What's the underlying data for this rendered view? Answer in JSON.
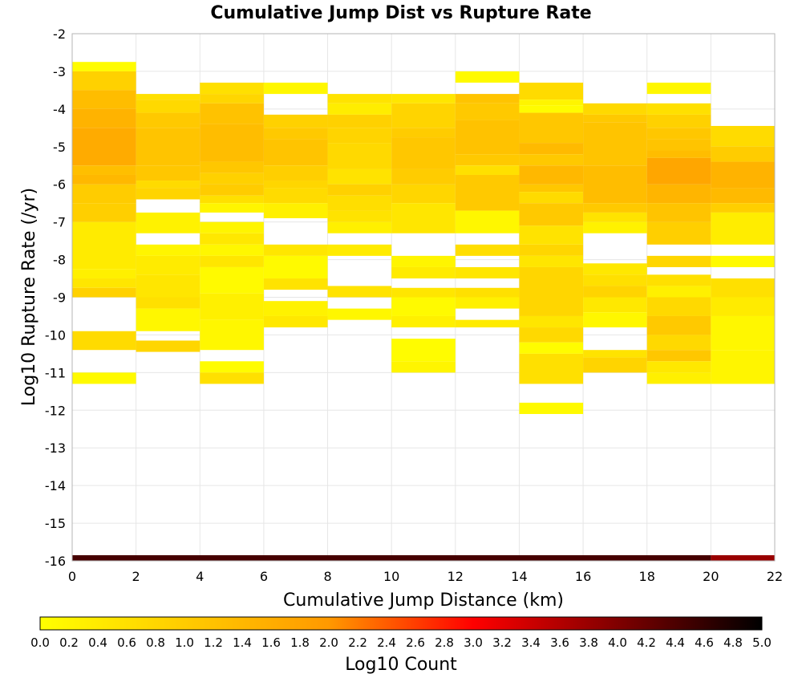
{
  "chart_data": {
    "type": "heatmap",
    "title": "Cumulative Jump Dist vs Rupture Rate",
    "xlabel": "Cumulative Jump Distance (km)",
    "ylabel": "Log10 Rupture Rate (/yr)",
    "xlim": [
      0,
      22
    ],
    "ylim": [
      -16,
      -2
    ],
    "x_bin_width": 2,
    "y_bin_width": 0.25,
    "x_ticks": [
      "0",
      "2",
      "4",
      "6",
      "8",
      "10",
      "12",
      "14",
      "16",
      "18",
      "20",
      "22"
    ],
    "y_ticks": [
      "-2",
      "-3",
      "-4",
      "-5",
      "-6",
      "-7",
      "-8",
      "-9",
      "-10",
      "-11",
      "-12",
      "-13",
      "-14",
      "-15",
      "-16"
    ],
    "grid": true,
    "colorbar": {
      "label": "Log10 Count",
      "range": [
        0,
        5
      ],
      "ticks": [
        "0.0",
        "0.2",
        "0.4",
        "0.6",
        "0.8",
        "1.0",
        "1.2",
        "1.4",
        "1.6",
        "1.8",
        "2.0",
        "2.2",
        "2.4",
        "2.6",
        "2.8",
        "3.0",
        "3.2",
        "3.4",
        "3.6",
        "3.8",
        "4.0",
        "4.2",
        "4.4",
        "4.6",
        "4.8",
        "5.0"
      ],
      "colors": [
        "#ffff00",
        "#ff9900",
        "#ff0000",
        "#000000"
      ]
    },
    "cells": [
      {
        "x0": 0,
        "rows": [
          [
            -2.75,
            -3.0,
            0.05
          ],
          [
            -3.0,
            -3.5,
            0.9
          ],
          [
            -3.5,
            -4.0,
            1.3
          ],
          [
            -4.0,
            -4.5,
            1.5
          ],
          [
            -4.5,
            -5.5,
            1.65
          ],
          [
            -5.5,
            -5.75,
            1.25
          ],
          [
            -5.75,
            -6.0,
            1.4
          ],
          [
            -6.0,
            -6.5,
            1.0
          ],
          [
            -6.5,
            -7.0,
            0.95
          ],
          [
            -7.0,
            -8.25,
            0.4
          ],
          [
            -8.25,
            -8.5,
            0.3
          ],
          [
            -8.5,
            -8.75,
            0.5
          ],
          [
            -8.75,
            -9.0,
            0.9
          ],
          [
            -9.9,
            -10.4,
            0.7
          ],
          [
            -11.0,
            -11.3,
            0.1
          ]
        ]
      },
      {
        "x0": 2,
        "rows": [
          [
            -3.6,
            -3.75,
            0.6
          ],
          [
            -3.75,
            -4.1,
            0.75
          ],
          [
            -4.1,
            -4.5,
            1.05
          ],
          [
            -4.5,
            -5.5,
            1.15
          ],
          [
            -5.5,
            -5.9,
            1.1
          ],
          [
            -5.9,
            -6.1,
            0.7
          ],
          [
            -6.1,
            -6.4,
            0.85
          ],
          [
            -6.75,
            -7.3,
            0.25
          ],
          [
            -7.6,
            -7.9,
            0.2
          ],
          [
            -7.9,
            -8.4,
            0.4
          ],
          [
            -8.4,
            -9.0,
            0.5
          ],
          [
            -9.0,
            -9.3,
            0.6
          ],
          [
            -9.3,
            -9.9,
            0.15
          ],
          [
            -10.15,
            -10.45,
            0.8
          ]
        ]
      },
      {
        "x0": 4,
        "rows": [
          [
            -3.3,
            -3.6,
            0.6
          ],
          [
            -3.6,
            -3.85,
            0.8
          ],
          [
            -3.85,
            -4.4,
            1.2
          ],
          [
            -4.4,
            -5.4,
            1.3
          ],
          [
            -5.4,
            -5.7,
            1.1
          ],
          [
            -5.7,
            -6.0,
            0.9
          ],
          [
            -6.0,
            -6.3,
            1.0
          ],
          [
            -6.3,
            -6.5,
            0.6
          ],
          [
            -6.5,
            -6.75,
            0.2
          ],
          [
            -7.0,
            -7.3,
            0.2
          ],
          [
            -7.3,
            -7.6,
            0.45
          ],
          [
            -7.6,
            -7.9,
            0.15
          ],
          [
            -7.9,
            -8.2,
            0.5
          ],
          [
            -8.2,
            -8.9,
            0.1
          ],
          [
            -8.9,
            -9.6,
            0.3
          ],
          [
            -9.6,
            -10.4,
            0.15
          ],
          [
            -10.7,
            -11.0,
            0.05
          ],
          [
            -11.0,
            -11.3,
            0.6
          ]
        ]
      },
      {
        "x0": 6,
        "rows": [
          [
            -3.3,
            -3.6,
            0.15
          ],
          [
            -4.15,
            -4.5,
            0.9
          ],
          [
            -4.5,
            -4.8,
            1.05
          ],
          [
            -4.8,
            -5.5,
            1.15
          ],
          [
            -5.5,
            -5.9,
            0.95
          ],
          [
            -5.9,
            -6.1,
            0.8
          ],
          [
            -6.1,
            -6.5,
            0.7
          ],
          [
            -6.5,
            -6.9,
            0.3
          ],
          [
            -7.6,
            -7.9,
            0.5
          ],
          [
            -7.9,
            -8.5,
            0.1
          ],
          [
            -8.5,
            -8.8,
            0.55
          ],
          [
            -9.1,
            -9.5,
            0.25
          ],
          [
            -9.5,
            -9.8,
            0.45
          ]
        ]
      },
      {
        "x0": 8,
        "rows": [
          [
            -3.6,
            -3.85,
            0.55
          ],
          [
            -3.85,
            -4.15,
            0.35
          ],
          [
            -4.15,
            -4.5,
            0.9
          ],
          [
            -4.5,
            -4.9,
            0.85
          ],
          [
            -4.9,
            -5.6,
            0.75
          ],
          [
            -5.6,
            -6.0,
            0.55
          ],
          [
            -6.0,
            -6.3,
            0.9
          ],
          [
            -6.3,
            -6.7,
            0.65
          ],
          [
            -6.7,
            -7.0,
            0.55
          ],
          [
            -7.0,
            -7.3,
            0.3
          ],
          [
            -7.6,
            -7.9,
            0.4
          ],
          [
            -8.7,
            -9.0,
            0.55
          ],
          [
            -9.3,
            -9.6,
            0.15
          ]
        ]
      },
      {
        "x0": 10,
        "rows": [
          [
            -3.6,
            -3.85,
            0.5
          ],
          [
            -3.85,
            -4.5,
            0.85
          ],
          [
            -4.5,
            -4.75,
            1.0
          ],
          [
            -4.75,
            -5.6,
            1.1
          ],
          [
            -5.6,
            -6.0,
            1.0
          ],
          [
            -6.0,
            -6.5,
            0.8
          ],
          [
            -6.5,
            -7.3,
            0.5
          ],
          [
            -7.9,
            -8.2,
            0.2
          ],
          [
            -8.2,
            -8.5,
            0.4
          ],
          [
            -8.75,
            -9.0,
            0.5
          ],
          [
            -9.0,
            -9.5,
            0.1
          ],
          [
            -9.5,
            -9.8,
            0.3
          ],
          [
            -10.1,
            -10.7,
            0.05
          ],
          [
            -10.7,
            -11.0,
            0.2
          ]
        ]
      },
      {
        "x0": 12,
        "rows": [
          [
            -3.0,
            -3.3,
            0.1
          ],
          [
            -3.6,
            -3.85,
            1.15
          ],
          [
            -3.85,
            -4.3,
            1.05
          ],
          [
            -4.3,
            -5.2,
            1.2
          ],
          [
            -5.2,
            -5.5,
            1.05
          ],
          [
            -5.5,
            -5.75,
            0.6
          ],
          [
            -5.75,
            -6.7,
            1.05
          ],
          [
            -6.7,
            -7.3,
            0.15
          ],
          [
            -7.6,
            -7.9,
            0.65
          ],
          [
            -8.2,
            -8.5,
            0.5
          ],
          [
            -8.75,
            -9.0,
            0.6
          ],
          [
            -9.0,
            -9.3,
            0.3
          ],
          [
            -9.6,
            -9.8,
            0.4
          ]
        ]
      },
      {
        "x0": 14,
        "rows": [
          [
            -3.3,
            -3.75,
            0.7
          ],
          [
            -3.75,
            -3.9,
            0.2
          ],
          [
            -3.9,
            -4.1,
            0.05
          ],
          [
            -4.1,
            -4.9,
            1.1
          ],
          [
            -4.9,
            -5.2,
            1.35
          ],
          [
            -5.2,
            -5.5,
            1.05
          ],
          [
            -5.5,
            -6.0,
            1.4
          ],
          [
            -6.0,
            -6.2,
            1.1
          ],
          [
            -6.2,
            -6.5,
            0.7
          ],
          [
            -6.5,
            -7.1,
            1.05
          ],
          [
            -7.1,
            -7.6,
            0.55
          ],
          [
            -7.6,
            -7.9,
            0.8
          ],
          [
            -7.9,
            -8.2,
            0.5
          ],
          [
            -8.2,
            -9.5,
            0.8
          ],
          [
            -9.5,
            -9.8,
            0.5
          ],
          [
            -9.8,
            -10.2,
            0.75
          ],
          [
            -10.2,
            -10.5,
            0.05
          ],
          [
            -10.5,
            -11.3,
            0.6
          ],
          [
            -11.8,
            -12.1,
            0.1
          ]
        ]
      },
      {
        "x0": 16,
        "rows": [
          [
            -3.85,
            -4.15,
            0.75
          ],
          [
            -4.15,
            -4.35,
            1.05
          ],
          [
            -4.35,
            -5.5,
            1.15
          ],
          [
            -5.5,
            -6.5,
            1.3
          ],
          [
            -6.5,
            -6.75,
            1.05
          ],
          [
            -6.75,
            -7.0,
            0.55
          ],
          [
            -7.0,
            -7.3,
            0.25
          ],
          [
            -8.1,
            -8.4,
            0.45
          ],
          [
            -8.4,
            -8.7,
            0.6
          ],
          [
            -8.7,
            -9.0,
            0.85
          ],
          [
            -9.0,
            -9.4,
            0.45
          ],
          [
            -9.4,
            -9.8,
            0.15
          ],
          [
            -10.4,
            -10.6,
            0.55
          ],
          [
            -10.6,
            -11.0,
            0.85
          ]
        ]
      },
      {
        "x0": 18,
        "rows": [
          [
            -3.3,
            -3.6,
            0.15
          ],
          [
            -3.85,
            -4.15,
            0.6
          ],
          [
            -4.15,
            -4.5,
            0.9
          ],
          [
            -4.5,
            -4.8,
            1.1
          ],
          [
            -4.8,
            -5.1,
            1.15
          ],
          [
            -5.1,
            -5.3,
            1.3
          ],
          [
            -5.3,
            -6.0,
            1.75
          ],
          [
            -6.0,
            -6.5,
            1.45
          ],
          [
            -6.5,
            -7.0,
            1.15
          ],
          [
            -7.0,
            -7.6,
            0.95
          ],
          [
            -7.9,
            -8.2,
            0.8
          ],
          [
            -8.4,
            -8.7,
            0.6
          ],
          [
            -8.7,
            -9.0,
            0.3
          ],
          [
            -9.0,
            -9.5,
            0.75
          ],
          [
            -9.5,
            -10.0,
            1.05
          ],
          [
            -10.0,
            -10.4,
            0.75
          ],
          [
            -10.4,
            -10.7,
            1.1
          ],
          [
            -10.7,
            -11.0,
            0.45
          ],
          [
            -11.0,
            -11.3,
            0.3
          ]
        ]
      },
      {
        "x0": 20,
        "rows": [
          [
            -4.45,
            -5.0,
            0.7
          ],
          [
            -5.0,
            -5.4,
            1.0
          ],
          [
            -5.4,
            -6.1,
            1.5
          ],
          [
            -6.1,
            -6.5,
            1.35
          ],
          [
            -6.5,
            -6.75,
            0.95
          ],
          [
            -6.75,
            -7.6,
            0.35
          ],
          [
            -7.9,
            -8.2,
            0.1
          ],
          [
            -8.5,
            -9.0,
            0.6
          ],
          [
            -9.0,
            -9.5,
            0.4
          ],
          [
            -9.5,
            -10.4,
            0.15
          ],
          [
            -10.4,
            -11.3,
            0.2
          ]
        ]
      }
    ],
    "bottom_band": {
      "y0": -15.85,
      "y1": -16.0,
      "segments": [
        {
          "x0": 0,
          "x1": 20,
          "value": 4.45
        },
        {
          "x0": 20,
          "x1": 22,
          "value": 3.8
        }
      ]
    }
  }
}
